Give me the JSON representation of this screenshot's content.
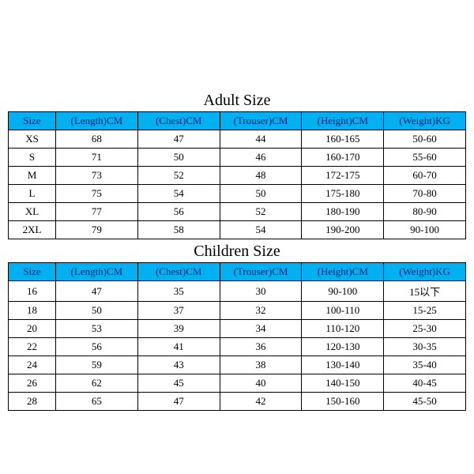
{
  "adult": {
    "title": "Adult Size",
    "columns": [
      "Size",
      "(Length)CM",
      "(Chest)CM",
      "(Trouser)CM",
      "(Height)CM",
      "(Weight)KG"
    ],
    "rows": [
      [
        "XS",
        "68",
        "47",
        "44",
        "160-165",
        "50-60"
      ],
      [
        "S",
        "71",
        "50",
        "46",
        "160-170",
        "55-60"
      ],
      [
        "M",
        "73",
        "52",
        "48",
        "172-175",
        "60-70"
      ],
      [
        "L",
        "75",
        "54",
        "50",
        "175-180",
        "70-80"
      ],
      [
        "XL",
        "77",
        "56",
        "52",
        "180-190",
        "80-90"
      ],
      [
        "2XL",
        "79",
        "58",
        "54",
        "190-200",
        "90-100"
      ]
    ]
  },
  "children": {
    "title": "Children Size",
    "columns": [
      "Size",
      "(Length)CM",
      "(Chest)CM",
      "(Trouser)CM",
      "(Height)CM",
      "(Weight)KG"
    ],
    "rows": [
      [
        "16",
        "47",
        "35",
        "30",
        "90-100",
        "15以下"
      ],
      [
        "18",
        "50",
        "37",
        "32",
        "100-110",
        "15-25"
      ],
      [
        "20",
        "53",
        "39",
        "34",
        "110-120",
        "25-30"
      ],
      [
        "22",
        "56",
        "41",
        "36",
        "120-130",
        "30-35"
      ],
      [
        "24",
        "59",
        "43",
        "38",
        "130-140",
        "35-40"
      ],
      [
        "26",
        "62",
        "45",
        "40",
        "140-150",
        "40-45"
      ],
      [
        "28",
        "65",
        "47",
        "42",
        "150-160",
        "45-50"
      ]
    ]
  },
  "style": {
    "header_bg": "#00b0f0",
    "header_color": "#00257f",
    "border_color": "#000000",
    "cell_bg": "#ffffff",
    "title_fontsize": 20,
    "cell_fontsize": 13,
    "col_widths": {
      "size": 60
    }
  }
}
